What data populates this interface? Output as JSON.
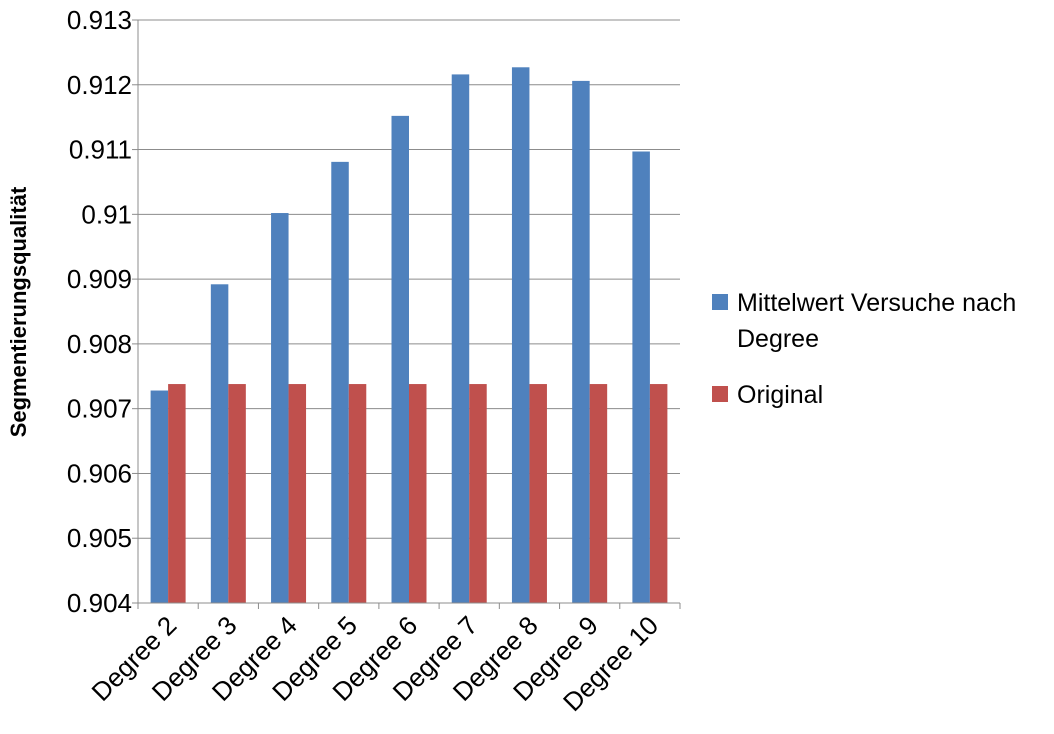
{
  "chart_data": {
    "type": "bar",
    "title": "",
    "xlabel": "",
    "ylabel": "Segmentierungsqualität",
    "ylim": [
      0.904,
      0.913
    ],
    "yticks": [
      0.904,
      0.905,
      0.906,
      0.907,
      0.908,
      0.909,
      0.91,
      0.911,
      0.912,
      0.913
    ],
    "ytick_labels": [
      "0.904",
      "0.905",
      "0.906",
      "0.907",
      "0.908",
      "0.909",
      "0.91",
      "0.911",
      "0.912",
      "0.913"
    ],
    "grid": "horizontal",
    "legend_position": "right",
    "categories": [
      "Degree 2",
      "Degree 3",
      "Degree 4",
      "Degree 5",
      "Degree 6",
      "Degree 7",
      "Degree 8",
      "Degree 9",
      "Degree 10"
    ],
    "series": [
      {
        "name": "Mittelwert Versuche nach Degree",
        "legend_lines": [
          "Mittelwert Versuche nach",
          "Degree"
        ],
        "color": "#4F81BD",
        "values": [
          0.90728,
          0.90892,
          0.91002,
          0.91081,
          0.91152,
          0.91216,
          0.91227,
          0.91206,
          0.91097
        ]
      },
      {
        "name": "Original",
        "legend_lines": [
          "Original"
        ],
        "color": "#C0504D",
        "values": [
          0.90738,
          0.90738,
          0.90738,
          0.90738,
          0.90738,
          0.90738,
          0.90738,
          0.90738,
          0.90738
        ]
      }
    ]
  }
}
